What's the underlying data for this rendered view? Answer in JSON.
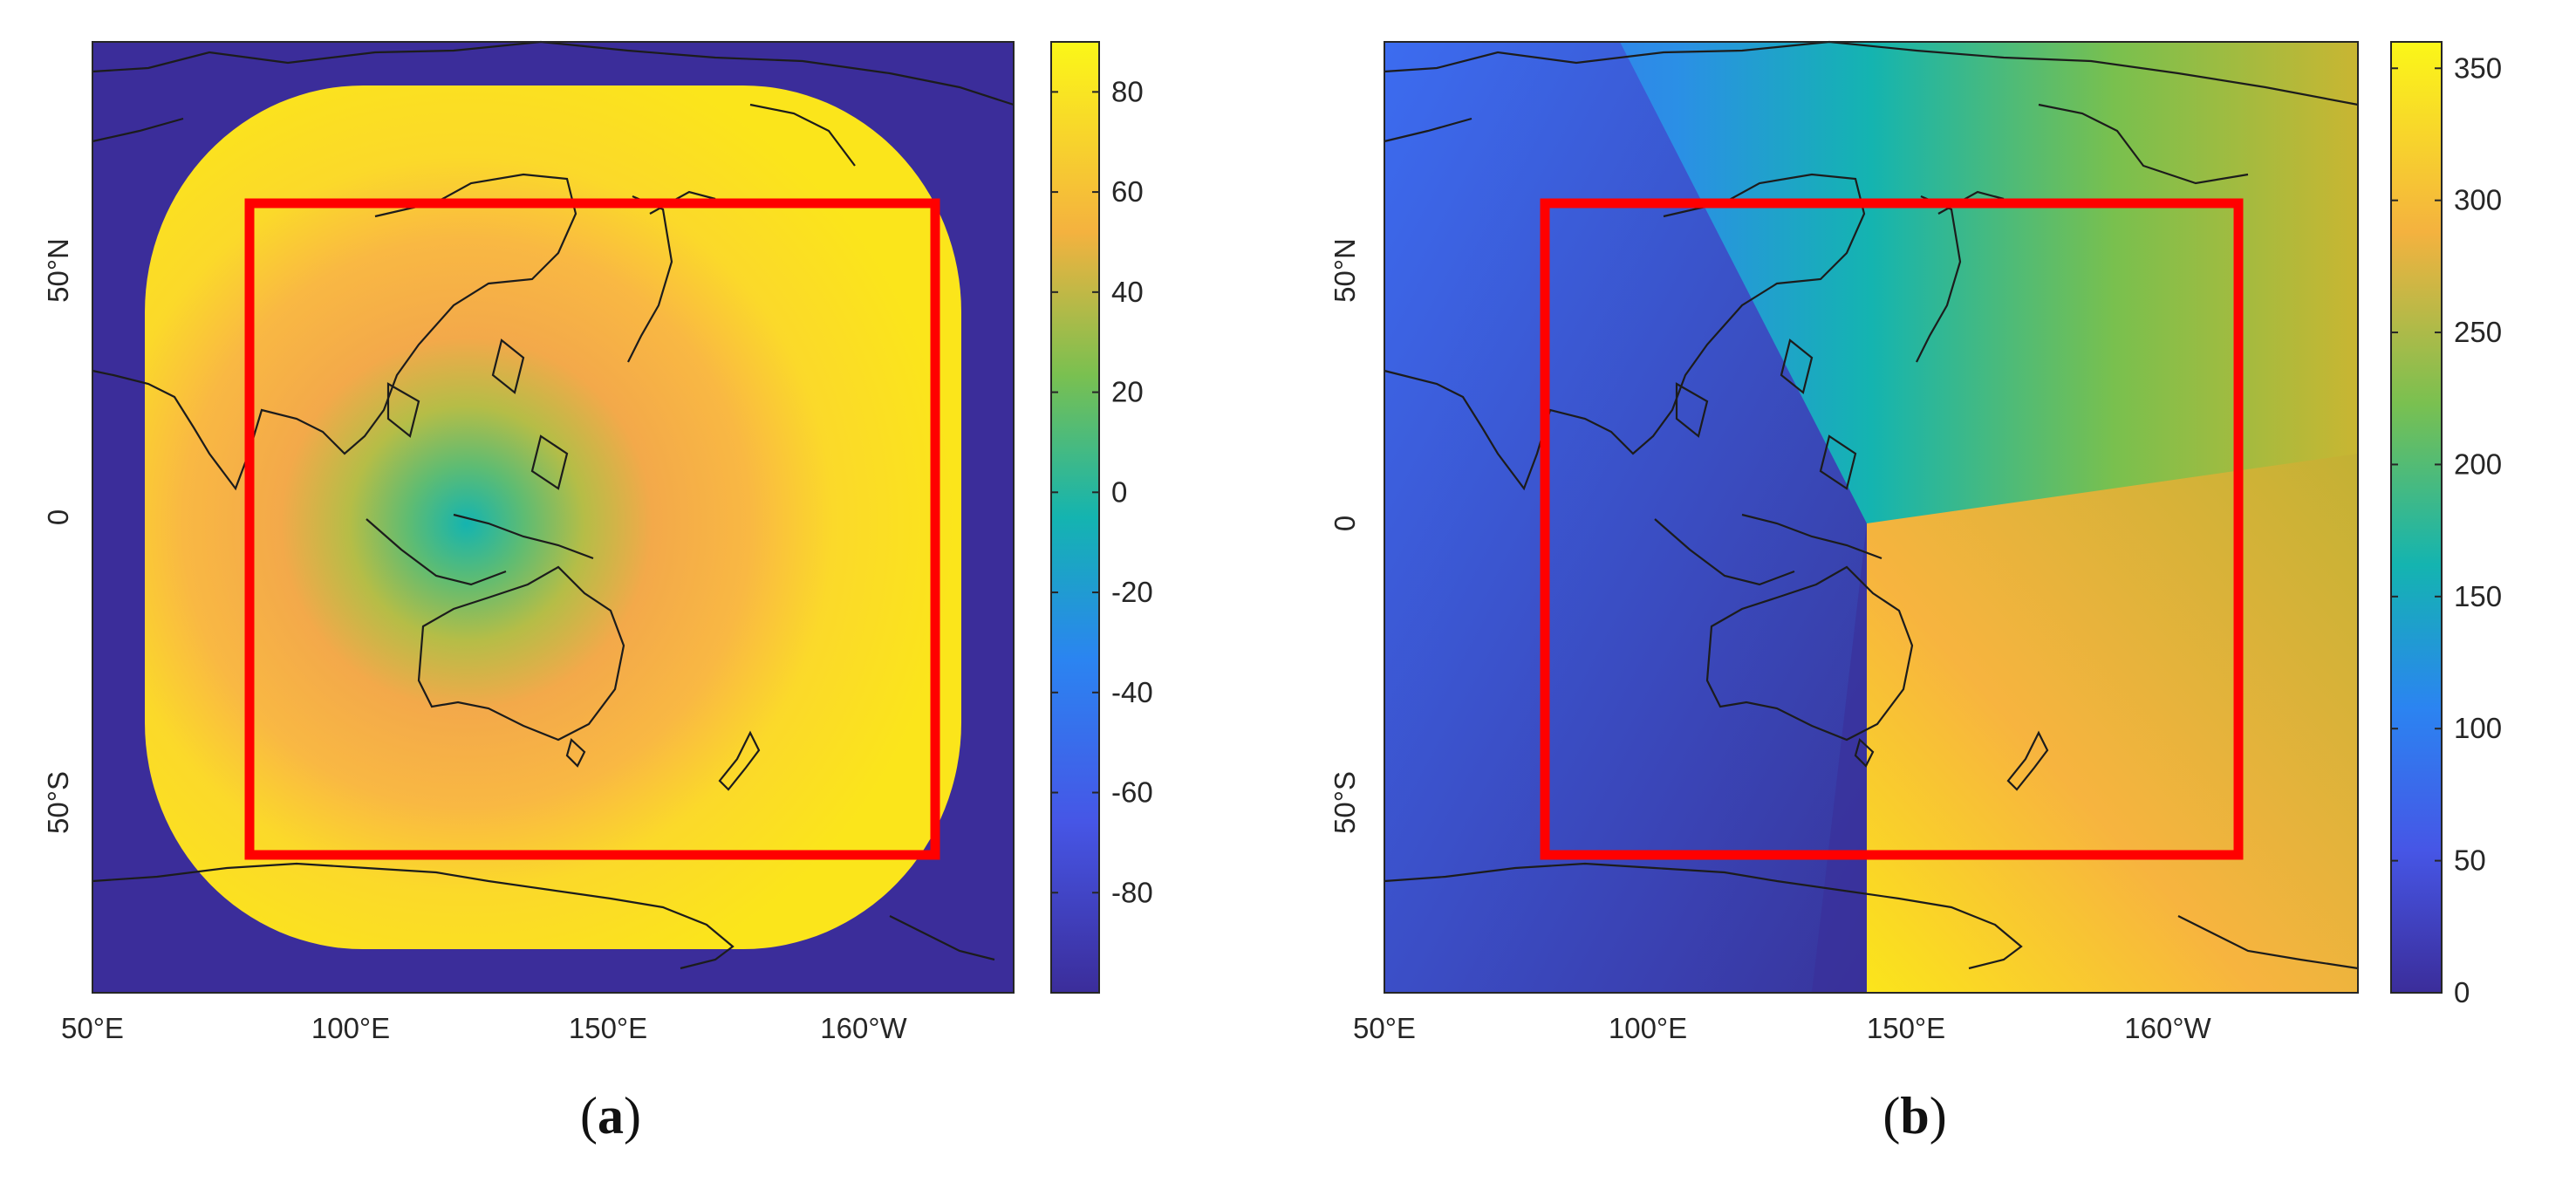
{
  "chart_data": [
    {
      "type": "heatmap",
      "panel": "(a)",
      "caption_prefix": "(",
      "caption_letter": "a",
      "caption_suffix": ")",
      "xticks": [
        "50°E",
        "100°E",
        "150°E",
        "160°W"
      ],
      "yticks": [
        "50°N",
        "0",
        "50°S"
      ],
      "colorbar": {
        "range": [
          -100,
          90
        ],
        "ticks": [
          -80,
          -60,
          -40,
          -20,
          0,
          20,
          40,
          60,
          80
        ]
      },
      "colors": {
        "low": "#3b2d9a",
        "mid": "#14b4b0",
        "high": "#fbe51b",
        "box": "#ff0000"
      }
    },
    {
      "type": "heatmap",
      "panel": "(b)",
      "caption_prefix": "(",
      "caption_letter": "b",
      "caption_suffix": ")",
      "xticks": [
        "50°E",
        "100°E",
        "150°E",
        "160°W"
      ],
      "yticks": [
        "50°N",
        "0",
        "50°S"
      ],
      "colorbar": {
        "range": [
          0,
          360
        ],
        "ticks": [
          0,
          50,
          100,
          150,
          200,
          250,
          300,
          350
        ]
      },
      "colors": {
        "low": "#3b2d9a",
        "mid": "#14b4b0",
        "high": "#fbe51b",
        "box": "#ff0000"
      }
    }
  ]
}
